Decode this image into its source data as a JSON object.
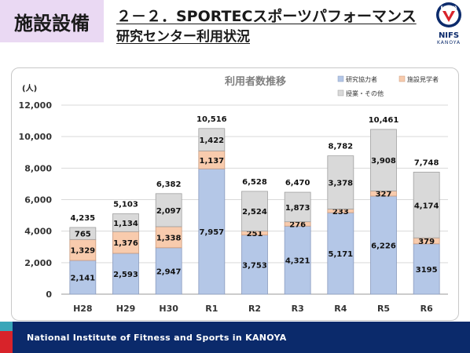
{
  "header": {
    "section": "施設設備",
    "title_line1": "２－２．SPORTECスポーツパフォーマンス",
    "title_line2": "研究センター利用状況"
  },
  "logo": {
    "text": "NIFS",
    "sub": "KANOYA",
    "emblem_text": "KANOYA",
    "color": "#0b2a6b"
  },
  "footer": {
    "text": "National Institute of Fitness and Sports in KANOYA"
  },
  "chart_data": {
    "type": "bar",
    "stacked": true,
    "title": "利用者数推移",
    "ylabel": "(人)",
    "ylim": [
      0,
      12000
    ],
    "yticks": [
      "0",
      "2,000",
      "4,000",
      "6,000",
      "8,000",
      "10,000",
      "12,000"
    ],
    "grid": true,
    "legend_position": "top-right",
    "categories": [
      "H28",
      "H29",
      "H30",
      "R1",
      "R2",
      "R3",
      "R4",
      "R5",
      "R6"
    ],
    "series": [
      {
        "name": "研究協力者",
        "color": "#b4c7e7",
        "values": [
          2141,
          2593,
          2947,
          7957,
          3753,
          4321,
          5171,
          6226,
          3195
        ],
        "labels": [
          "2,141",
          "2,593",
          "2,947",
          "7,957",
          "3,753",
          "4,321",
          "5,171",
          "6,226",
          "3195"
        ]
      },
      {
        "name": "施設見学者",
        "color": "#f8cbad",
        "values": [
          1329,
          1376,
          1338,
          1137,
          251,
          276,
          233,
          327,
          379
        ],
        "labels": [
          "1,329",
          "1,376",
          "1,338",
          "1,137",
          "251",
          "276",
          "233",
          "327",
          "379"
        ]
      },
      {
        "name": "授業・その他",
        "color": "#d9d9d9",
        "values": [
          765,
          1134,
          2097,
          1422,
          2524,
          1873,
          3378,
          3908,
          4174
        ],
        "labels": [
          "765",
          "1,134",
          "2,097",
          "1,422",
          "2,524",
          "1,873",
          "3,378",
          "3,908",
          "4,174"
        ]
      }
    ],
    "totals": [
      "4,235",
      "5,103",
      "6,382",
      "10,516",
      "6,528",
      "6,470",
      "8,782",
      "10,461",
      "7,748"
    ]
  }
}
